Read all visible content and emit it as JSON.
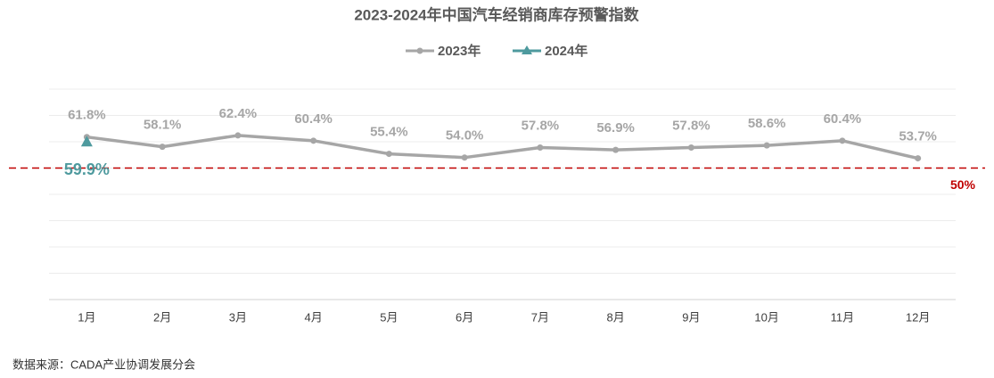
{
  "chart_data": {
    "type": "line",
    "title": "2023-2024年中国汽车经销商库存预警指数",
    "categories": [
      "1月",
      "2月",
      "3月",
      "4月",
      "5月",
      "6月",
      "7月",
      "8月",
      "9月",
      "10月",
      "11月",
      "12月"
    ],
    "series": [
      {
        "name": "2023年",
        "color": "#a6a6a6",
        "marker": "circle",
        "values": [
          61.8,
          58.1,
          62.4,
          60.4,
          55.4,
          54.0,
          57.8,
          56.9,
          57.8,
          58.6,
          60.4,
          53.7
        ],
        "value_labels": [
          "61.8%",
          "58.1%",
          "62.4%",
          "60.4%",
          "55.4%",
          "54.0%",
          "57.8%",
          "56.9%",
          "57.8%",
          "58.6%",
          "60.4%",
          "53.7%"
        ]
      },
      {
        "name": "2024年",
        "color": "#4e9a9e",
        "marker": "triangle",
        "values": [
          59.9,
          null,
          null,
          null,
          null,
          null,
          null,
          null,
          null,
          null,
          null,
          null
        ],
        "value_labels": [
          "59.9%",
          null,
          null,
          null,
          null,
          null,
          null,
          null,
          null,
          null,
          null,
          null
        ]
      }
    ],
    "ylim": [
      0,
      80
    ],
    "yticks": [
      0,
      10,
      20,
      30,
      40,
      50,
      60,
      70,
      80
    ],
    "show_ytick_labels": false,
    "grid": true,
    "reference_line": {
      "value": 50,
      "label": "50%",
      "color": "#c00000"
    },
    "source": "数据来源：CADA产业协调发展分会"
  }
}
